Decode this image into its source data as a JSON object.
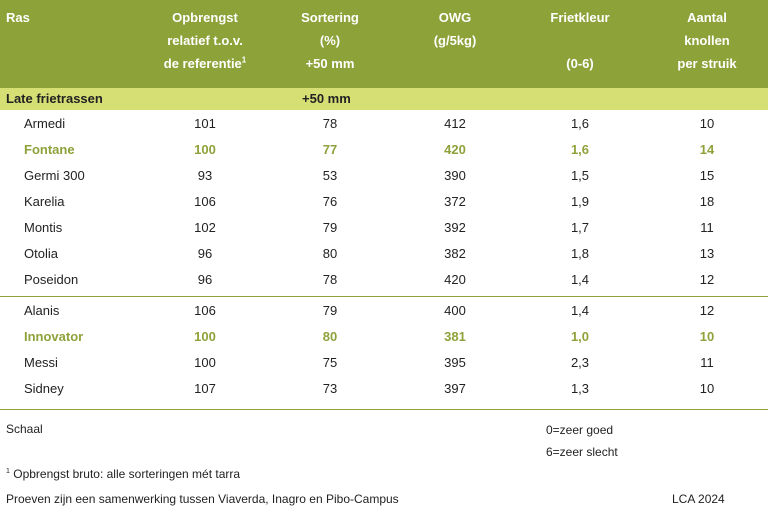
{
  "header": {
    "ras": "Ras",
    "opbrengst": [
      "Opbrengst",
      "relatief t.o.v.",
      "de referentie"
    ],
    "opbrengst_sup": "1",
    "sortering": [
      "Sortering",
      "(%)",
      "+50 mm"
    ],
    "owg": [
      "OWG",
      "(g/5kg)"
    ],
    "frietkleur": [
      "Frietkleur",
      "(0-6)"
    ],
    "aantal": [
      "Aantal",
      "knollen",
      "per struik"
    ]
  },
  "section": {
    "label": "Late frietrassen",
    "sub": "+50 mm"
  },
  "group1": [
    {
      "ras": "Armedi",
      "opbrengst": "101",
      "sortering": "78",
      "owg": "412",
      "frietkleur": "1,6",
      "aantal": "10",
      "ref": false
    },
    {
      "ras": "Fontane",
      "opbrengst": "100",
      "sortering": "77",
      "owg": "420",
      "frietkleur": "1,6",
      "aantal": "14",
      "ref": true
    },
    {
      "ras": "Germi 300",
      "opbrengst": "93",
      "sortering": "53",
      "owg": "390",
      "frietkleur": "1,5",
      "aantal": "15",
      "ref": false
    },
    {
      "ras": "Karelia",
      "opbrengst": "106",
      "sortering": "76",
      "owg": "372",
      "frietkleur": "1,9",
      "aantal": "18",
      "ref": false
    },
    {
      "ras": "Montis",
      "opbrengst": "102",
      "sortering": "79",
      "owg": "392",
      "frietkleur": "1,7",
      "aantal": "11",
      "ref": false
    },
    {
      "ras": "Otolia",
      "opbrengst": "96",
      "sortering": "80",
      "owg": "382",
      "frietkleur": "1,8",
      "aantal": "13",
      "ref": false
    },
    {
      "ras": "Poseidon",
      "opbrengst": "96",
      "sortering": "78",
      "owg": "420",
      "frietkleur": "1,4",
      "aantal": "12",
      "ref": false
    }
  ],
  "group2": [
    {
      "ras": "Alanis",
      "opbrengst": "106",
      "sortering": "79",
      "owg": "400",
      "frietkleur": "1,4",
      "aantal": "12",
      "ref": false
    },
    {
      "ras": "Innovator",
      "opbrengst": "100",
      "sortering": "80",
      "owg": "381",
      "frietkleur": "1,0",
      "aantal": "10",
      "ref": true
    },
    {
      "ras": "Messi",
      "opbrengst": "100",
      "sortering": "75",
      "owg": "395",
      "frietkleur": "2,3",
      "aantal": "11",
      "ref": false
    },
    {
      "ras": "Sidney",
      "opbrengst": "107",
      "sortering": "73",
      "owg": "397",
      "frietkleur": "1,3",
      "aantal": "10",
      "ref": false
    }
  ],
  "footer": {
    "schaal": "Schaal",
    "scale_good": "0=zeer goed",
    "scale_bad": "6=zeer slecht",
    "footnote_sup": "1",
    "footnote": "Opbrengst bruto: alle sorteringen mét tarra",
    "credits": "Proeven zijn een samenwerking tussen Viaverda, Inagro en Pibo-Campus",
    "source": "LCA 2024"
  },
  "colors": {
    "header_bg": "#8ea23a",
    "section_bg": "#d6df74",
    "reference_text": "#8ea23a"
  }
}
